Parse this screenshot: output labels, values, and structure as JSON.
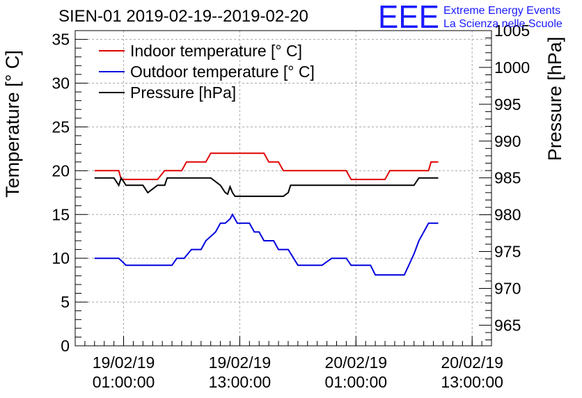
{
  "branding": {
    "logo_text": "EEE",
    "line1": "Extreme Energy Events",
    "line2": "La Scienza nelle Scuole"
  },
  "colors": {
    "indoor": "#e00000",
    "outdoor": "#0000e0",
    "pressure": "#000000",
    "logo": "#1a1aff"
  },
  "chart_data": {
    "type": "line",
    "title": "SIEN-01 2019-02-19--2019-02-20",
    "ylabel": "Temperature [° C]",
    "y2label": "Pressure [hPa]",
    "xlabel": "",
    "x_unit": "datetime",
    "x_range": [
      "2019-02-18 20:00",
      "2019-02-20 15:00"
    ],
    "ylim": [
      0,
      36
    ],
    "y2lim": [
      962.2,
      1005
    ],
    "grid": true,
    "legend_position": "top-left",
    "x_ticks": [
      {
        "at": "2019-02-19 01:00",
        "line1": "19/02/19",
        "line2": "01:00:00"
      },
      {
        "at": "2019-02-19 13:00",
        "line1": "19/02/19",
        "line2": "13:00:00"
      },
      {
        "at": "2019-02-20 01:00",
        "line1": "20/02/19",
        "line2": "01:00:00"
      },
      {
        "at": "2019-02-20 13:00",
        "line1": "20/02/19",
        "line2": "13:00:00"
      }
    ],
    "y_ticks": [
      0,
      5,
      10,
      15,
      20,
      25,
      30,
      35
    ],
    "y2_ticks": [
      965,
      970,
      975,
      980,
      985,
      990,
      995,
      1000,
      1005
    ],
    "series": [
      {
        "name": "Indoor temperature [° C]",
        "axis": "left",
        "x": [
          "2019-02-18 22:00",
          "2019-02-19 00:30",
          "2019-02-19 00:45",
          "2019-02-19 04:30",
          "2019-02-19 05:15",
          "2019-02-19 07:00",
          "2019-02-19 07:30",
          "2019-02-19 09:30",
          "2019-02-19 10:00",
          "2019-02-19 15:30",
          "2019-02-19 16:00",
          "2019-02-19 17:00",
          "2019-02-19 17:30",
          "2019-02-20 00:00",
          "2019-02-20 00:30",
          "2019-02-20 04:00",
          "2019-02-20 04:30",
          "2019-02-20 08:30",
          "2019-02-20 08:45",
          "2019-02-20 09:30"
        ],
        "y": [
          20,
          20,
          19,
          19,
          20,
          20,
          21,
          21,
          22,
          22,
          21,
          21,
          20,
          20,
          19,
          19,
          20,
          20,
          21,
          21
        ]
      },
      {
        "name": "Outdoor temperature [° C]",
        "axis": "left",
        "x": [
          "2019-02-18 22:00",
          "2019-02-19 00:30",
          "2019-02-19 01:15",
          "2019-02-19 06:00",
          "2019-02-19 06:30",
          "2019-02-19 07:15",
          "2019-02-19 08:00",
          "2019-02-19 09:00",
          "2019-02-19 09:30",
          "2019-02-19 10:30",
          "2019-02-19 11:00",
          "2019-02-19 11:30",
          "2019-02-19 12:00",
          "2019-02-19 12:15",
          "2019-02-19 12:45",
          "2019-02-19 14:00",
          "2019-02-19 14:30",
          "2019-02-19 15:00",
          "2019-02-19 15:30",
          "2019-02-19 16:30",
          "2019-02-19 17:00",
          "2019-02-19 18:00",
          "2019-02-19 19:00",
          "2019-02-19 21:30",
          "2019-02-19 22:30",
          "2019-02-20 00:00",
          "2019-02-20 00:30",
          "2019-02-20 02:30",
          "2019-02-20 03:00",
          "2019-02-20 06:00",
          "2019-02-20 06:30",
          "2019-02-20 07:00",
          "2019-02-20 07:30",
          "2019-02-20 08:00",
          "2019-02-20 08:30",
          "2019-02-20 09:00",
          "2019-02-20 09:30"
        ],
        "y": [
          10,
          10,
          9.2,
          9.2,
          10,
          10,
          11,
          11,
          12,
          13,
          14,
          14,
          14.5,
          15,
          14,
          14,
          13,
          13,
          12,
          12,
          11,
          11,
          9.2,
          9.2,
          10,
          10,
          9.2,
          9.2,
          8.1,
          8.1,
          9.3,
          10.5,
          12,
          13,
          14,
          14,
          14
        ]
      },
      {
        "name": "Pressure [hPa]",
        "axis": "right",
        "x": [
          "2019-02-18 22:00",
          "2019-02-19 00:00",
          "2019-02-19 00:15",
          "2019-02-19 00:30",
          "2019-02-19 00:45",
          "2019-02-19 01:15",
          "2019-02-19 03:00",
          "2019-02-19 03:15",
          "2019-02-19 03:30",
          "2019-02-19 04:00",
          "2019-02-19 04:30",
          "2019-02-19 05:15",
          "2019-02-19 05:30",
          "2019-02-19 10:00",
          "2019-02-19 11:00",
          "2019-02-19 11:30",
          "2019-02-19 11:45",
          "2019-02-19 12:00",
          "2019-02-19 12:15",
          "2019-02-19 12:30",
          "2019-02-19 17:30",
          "2019-02-19 18:00",
          "2019-02-19 18:15",
          "2019-02-20 07:00",
          "2019-02-20 07:30",
          "2019-02-20 09:30"
        ],
        "y": [
          985,
          985,
          984.5,
          984,
          985,
          984,
          984,
          983.5,
          983,
          983.5,
          984,
          984,
          985,
          985,
          984,
          983,
          982.8,
          983.8,
          983,
          982.5,
          982.5,
          983,
          984,
          984,
          985,
          985
        ]
      }
    ]
  }
}
